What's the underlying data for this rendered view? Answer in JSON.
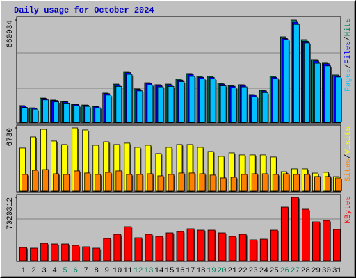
{
  "chart_data": {
    "type": "bar",
    "title": "Daily usage for October 2024",
    "categories": [
      "1",
      "2",
      "3",
      "4",
      "5",
      "6",
      "7",
      "8",
      "9",
      "10",
      "11",
      "12",
      "13",
      "14",
      "15",
      "16",
      "17",
      "18",
      "19",
      "20",
      "21",
      "22",
      "23",
      "24",
      "25",
      "26",
      "27",
      "28",
      "29",
      "30",
      "31"
    ],
    "category_colors": [
      "#000000",
      "#000000",
      "#000000",
      "#000000",
      "#00805c",
      "#00805c",
      "#000000",
      "#000000",
      "#000000",
      "#000000",
      "#000000",
      "#00805c",
      "#00805c",
      "#000000",
      "#000000",
      "#000000",
      "#000000",
      "#000000",
      "#00805c",
      "#00805c",
      "#000000",
      "#000000",
      "#000000",
      "#000000",
      "#000000",
      "#00805c",
      "#00805c",
      "#000000",
      "#000000",
      "#000000",
      "#000000"
    ],
    "legend_separator": "/",
    "panels": [
      {
        "ylim": [
          0,
          660934
        ],
        "yticks": [
          660934
        ],
        "series": [
          {
            "name": "Hits",
            "color": "#00805c",
            "values": [
              108000,
              94000,
              157000,
              144000,
              135000,
              117000,
              112000,
              103000,
              189000,
              247000,
              328000,
              216000,
              256000,
              243000,
              247000,
              279000,
              315000,
              297000,
              297000,
              252000,
              238000,
              243000,
              180000,
              207000,
              297000,
              553000,
              660934,
              535000,
              405000,
              387000,
              306000
            ]
          },
          {
            "name": "Files",
            "color": "#0000ff",
            "values": [
              106000,
              92000,
              154000,
              141000,
              132000,
              115000,
              110000,
              101000,
              185000,
              242000,
              321000,
              212000,
              251000,
              238000,
              242000,
              273000,
              309000,
              291000,
              291000,
              247000,
              233000,
              238000,
              176000,
              203000,
              291000,
              542000,
              648000,
              524000,
              397000,
              379000,
              300000
            ]
          },
          {
            "name": "Pages",
            "color": "#00c0ff",
            "values": [
              96000,
              85000,
              145000,
              132000,
              124000,
              107000,
              103000,
              94000,
              176000,
              232000,
              310000,
              203000,
              241000,
              229000,
              232000,
              263000,
              297000,
              281000,
              281000,
              236000,
              223000,
              229000,
              165000,
              192000,
              283000,
              535000,
              633000,
              513000,
              382000,
              365000,
              293000
            ]
          }
        ]
      },
      {
        "ylim": [
          0,
          6730
        ],
        "yticks": [
          6730
        ],
        "series": [
          {
            "name": "Visits",
            "color": "#ffff00",
            "values": [
              4590,
              5770,
              6580,
              5330,
              4960,
              6730,
              6510,
              4880,
              5250,
              4960,
              5110,
              4660,
              4880,
              4000,
              4660,
              4960,
              4960,
              4660,
              4220,
              3700,
              4070,
              3850,
              3850,
              3850,
              3630,
              2070,
              2370,
              2370,
              1920,
              2000,
              1550
            ]
          },
          {
            "name": "Sites",
            "color": "#ff8000",
            "values": [
              1780,
              2220,
              2290,
              1850,
              1780,
              2150,
              1930,
              1780,
              2000,
              2150,
              1780,
              1780,
              1850,
              1630,
              1780,
              1930,
              1930,
              1850,
              1710,
              1410,
              1480,
              1780,
              1850,
              1850,
              1780,
              1850,
              1780,
              1780,
              1560,
              1560,
              1410
            ]
          }
        ]
      },
      {
        "ylim": [
          0,
          7020312
        ],
        "yticks": [
          7020312
        ],
        "series": [
          {
            "name": "KBytes",
            "color": "#ff0000",
            "values": [
              1466000,
              1389000,
              1929000,
              1851000,
              1851000,
              1697000,
              1543000,
              1389000,
              2469000,
              2932000,
              3780000,
              2546000,
              2932000,
              2700000,
              3086000,
              3240000,
              3549000,
              3394000,
              3394000,
              3086000,
              2700000,
              2932000,
              2314000,
              2391000,
              3394000,
              5940000,
              7020312,
              5709000,
              4320000,
              4474000,
              3472000
            ]
          }
        ]
      }
    ]
  }
}
